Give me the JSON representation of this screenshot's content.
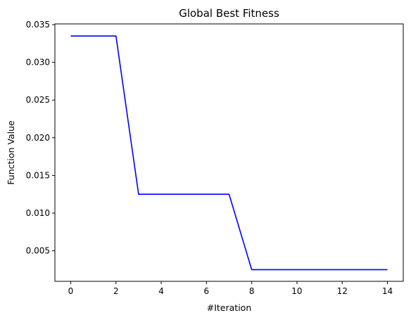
{
  "chart_data": {
    "type": "line",
    "title": "Global Best Fitness",
    "xlabel": "#Iteration",
    "ylabel": "Function Value",
    "xlim": [
      -0.7,
      14.7
    ],
    "ylim": [
      0.00095,
      0.0351
    ],
    "x_ticks": [
      0,
      2,
      4,
      6,
      8,
      10,
      12,
      14
    ],
    "x_tick_labels": [
      "0",
      "2",
      "4",
      "6",
      "8",
      "10",
      "12",
      "14"
    ],
    "y_ticks": [
      0.005,
      0.01,
      0.015,
      0.02,
      0.025,
      0.03,
      0.035
    ],
    "y_tick_labels": [
      "0.005",
      "0.010",
      "0.015",
      "0.020",
      "0.025",
      "0.030",
      "0.035"
    ],
    "grid": false,
    "series": [
      {
        "color": "#0000ff",
        "x": [
          0,
          1,
          2,
          3,
          4,
          5,
          6,
          7,
          8,
          9,
          10,
          11,
          12,
          13,
          14
        ],
        "y": [
          0.0335,
          0.0335,
          0.0335,
          0.0125,
          0.0125,
          0.0125,
          0.0125,
          0.0125,
          0.0025,
          0.0025,
          0.0025,
          0.0025,
          0.0025,
          0.0025,
          0.0025
        ]
      }
    ]
  }
}
